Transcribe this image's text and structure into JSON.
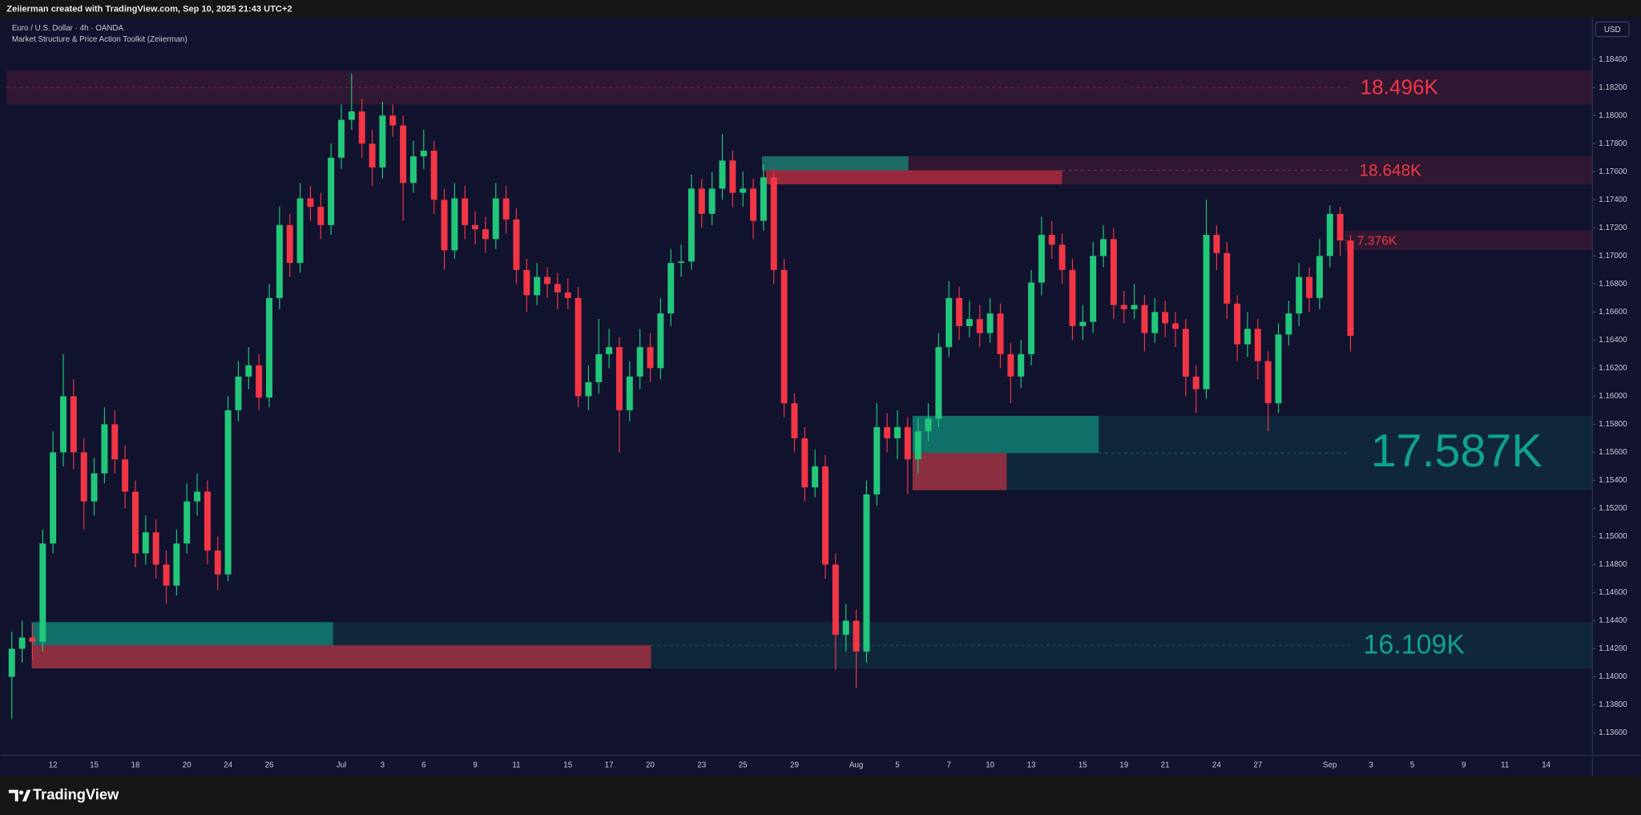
{
  "header": {
    "credit": "Zeiierman created with TradingView.com, Sep 10, 2025 21:43 UTC+2"
  },
  "footer": {
    "brand": "TradingView"
  },
  "chart_data": {
    "type": "candlestick",
    "title": "Euro / U.S. Dollar · 4h · OANDA",
    "subtitle": "Market Structure & Price Action Toolkit (Zeiierman)",
    "currency": "USD",
    "up_color": "#22c77a",
    "down_color": "#f23645",
    "grid": false,
    "categories": [
      null,
      null,
      null,
      null,
      "12",
      null,
      null,
      null,
      "15",
      null,
      null,
      null,
      "18",
      null,
      null,
      null,
      null,
      "20",
      null,
      null,
      null,
      "24",
      null,
      null,
      null,
      "26",
      null,
      null,
      null,
      null,
      null,
      null,
      "Jul",
      null,
      null,
      null,
      "3",
      null,
      null,
      null,
      "6",
      null,
      null,
      null,
      null,
      "9",
      null,
      null,
      null,
      "11",
      null,
      null,
      null,
      null,
      "15",
      null,
      null,
      null,
      "17",
      null,
      null,
      null,
      "20",
      null,
      null,
      null,
      null,
      "23",
      null,
      null,
      null,
      "25",
      null,
      null,
      null,
      null,
      "29",
      null,
      null,
      null,
      null,
      null,
      "Aug",
      null,
      null,
      null,
      "5",
      null,
      null,
      null,
      null,
      "7",
      null,
      null,
      null,
      "10",
      null,
      null,
      null,
      "13",
      null,
      null,
      null,
      null,
      "15",
      null,
      null,
      null,
      "19",
      null,
      null,
      null,
      "21",
      null,
      null,
      null,
      null,
      "24",
      null,
      null,
      null,
      "27",
      null,
      null,
      null,
      null,
      null,
      null,
      "Sep",
      null,
      null,
      null,
      "3",
      null,
      null,
      null,
      "5",
      null,
      null,
      null,
      null,
      "9",
      null,
      null,
      null,
      "11",
      null,
      null,
      null,
      "14",
      null,
      null,
      null,
      null
    ],
    "open": [
      1.14,
      1.142,
      1.1428,
      1.1425,
      1.1495,
      1.156,
      1.16,
      1.156,
      1.1525,
      1.1545,
      1.158,
      1.1555,
      1.1532,
      1.1488,
      1.1503,
      1.148,
      1.1465,
      1.1495,
      1.1525,
      1.1532,
      1.149,
      1.1473,
      1.159,
      1.1614,
      1.1622,
      1.1599,
      1.167,
      1.1722,
      1.1695,
      1.1741,
      1.1735,
      1.1722,
      1.177,
      1.1797,
      1.1803,
      1.178,
      1.1763,
      1.18,
      1.1793,
      1.1752,
      1.1771,
      1.1775,
      1.174,
      1.1704,
      1.1741,
      1.1722,
      1.1719,
      1.1712,
      1.1741,
      1.1726,
      1.169,
      1.1672,
      1.1685,
      1.168,
      1.1674,
      1.167,
      1.16,
      1.161,
      1.163,
      1.1635,
      1.159,
      1.1614,
      1.1635,
      1.162,
      1.1659,
      1.1695,
      1.1696,
      1.1748,
      1.173,
      1.1748,
      1.1768,
      1.1745,
      1.1748,
      1.1725,
      1.1756,
      1.169,
      1.1595,
      1.157,
      1.1535,
      1.155,
      1.148,
      1.143,
      1.144,
      1.1418,
      1.153,
      1.1578,
      1.157,
      1.1578,
      1.1555,
      1.1575,
      1.1584,
      1.1635,
      1.167,
      1.165,
      1.1655,
      1.1645,
      1.1659,
      1.163,
      1.1614,
      1.163,
      1.1681,
      1.1715,
      1.1708,
      1.169,
      1.165,
      1.1653,
      1.17,
      1.1712,
      1.1665,
      1.1662,
      1.1665,
      1.1645,
      1.166,
      1.1652,
      1.1648,
      1.1614,
      1.1605,
      1.1715,
      1.1702,
      1.1666,
      1.1637,
      1.1648,
      1.1625,
      1.1595,
      1.1644,
      1.1659,
      1.1685,
      1.167,
      1.17,
      1.173,
      1.1711,
      null,
      null,
      null,
      null,
      null,
      null,
      null,
      null,
      null,
      null,
      null,
      null,
      null,
      null,
      null,
      null,
      null,
      null,
      null,
      null,
      null,
      null,
      null
    ],
    "high": [
      1.1432,
      1.144,
      1.1438,
      1.1505,
      1.1575,
      1.163,
      1.1612,
      1.157,
      1.1556,
      1.1592,
      1.159,
      1.1565,
      1.154,
      1.1515,
      1.1512,
      1.149,
      1.1505,
      1.1538,
      1.1545,
      1.154,
      1.15,
      1.16,
      1.1625,
      1.1635,
      1.163,
      1.168,
      1.1735,
      1.173,
      1.1752,
      1.175,
      1.1745,
      1.178,
      1.1808,
      1.183,
      1.1812,
      1.179,
      1.181,
      1.1808,
      1.18,
      1.1782,
      1.179,
      1.1782,
      1.1748,
      1.1752,
      1.175,
      1.1732,
      1.1728,
      1.1752,
      1.175,
      1.1734,
      1.1698,
      1.1695,
      1.1692,
      1.1688,
      1.1684,
      1.1678,
      1.1622,
      1.1655,
      1.1648,
      1.1642,
      1.1625,
      1.1648,
      1.1645,
      1.167,
      1.1705,
      1.1708,
      1.1758,
      1.1755,
      1.176,
      1.1787,
      1.1775,
      1.176,
      1.1755,
      1.1765,
      1.1762,
      1.1698,
      1.1602,
      1.1578,
      1.1562,
      1.1558,
      1.1488,
      1.1452,
      1.1448,
      1.154,
      1.1595,
      1.1588,
      1.159,
      1.1585,
      1.1585,
      1.1595,
      1.1645,
      1.1682,
      1.1678,
      1.1668,
      1.1665,
      1.167,
      1.1666,
      1.1638,
      1.164,
      1.169,
      1.1728,
      1.1725,
      1.1716,
      1.1698,
      1.1665,
      1.171,
      1.1722,
      1.172,
      1.1675,
      1.168,
      1.1672,
      1.167,
      1.1668,
      1.166,
      1.1655,
      1.1622,
      1.174,
      1.1722,
      1.171,
      1.1672,
      1.166,
      1.1655,
      1.1632,
      1.1652,
      1.1668,
      1.1695,
      1.1692,
      1.1712,
      1.1736,
      1.1735,
      1.1715,
      null,
      null,
      null,
      null,
      null,
      null,
      null,
      null,
      null,
      null,
      null,
      null,
      null,
      null,
      null,
      null,
      null,
      null,
      null,
      null,
      null,
      null,
      null
    ],
    "low": [
      1.137,
      1.141,
      1.1412,
      1.1418,
      1.1488,
      1.155,
      1.1548,
      1.1505,
      1.1515,
      1.1538,
      1.1545,
      1.152,
      1.1478,
      1.148,
      1.147,
      1.1452,
      1.1458,
      1.1488,
      1.1515,
      1.148,
      1.1462,
      1.1468,
      1.1582,
      1.1605,
      1.159,
      1.1592,
      1.1662,
      1.1685,
      1.1688,
      1.1725,
      1.1712,
      1.1715,
      1.1762,
      1.179,
      1.177,
      1.175,
      1.1755,
      1.1785,
      1.1725,
      1.1745,
      1.1762,
      1.173,
      1.169,
      1.1698,
      1.1712,
      1.1708,
      1.1702,
      1.1705,
      1.1716,
      1.168,
      1.166,
      1.1665,
      1.167,
      1.1662,
      1.1662,
      1.1592,
      1.159,
      1.1602,
      1.162,
      1.156,
      1.1582,
      1.1605,
      1.161,
      1.1612,
      1.165,
      1.1685,
      1.169,
      1.172,
      1.1722,
      1.174,
      1.1735,
      1.1735,
      1.1712,
      1.1718,
      1.168,
      1.1585,
      1.156,
      1.1525,
      1.1528,
      1.147,
      1.1405,
      1.1418,
      1.1392,
      1.141,
      1.1522,
      1.156,
      1.1555,
      1.153,
      1.1545,
      1.1568,
      1.1578,
      1.1628,
      1.164,
      1.1642,
      1.1635,
      1.1638,
      1.162,
      1.1595,
      1.1606,
      1.1622,
      1.1672,
      1.1698,
      1.168,
      1.164,
      1.164,
      1.1645,
      1.1692,
      1.1655,
      1.1652,
      1.1655,
      1.1632,
      1.1638,
      1.1642,
      1.1635,
      1.16,
      1.1588,
      1.1598,
      1.169,
      1.1655,
      1.1625,
      1.1628,
      1.1612,
      1.1575,
      1.1588,
      1.1636,
      1.165,
      1.166,
      1.1662,
      1.1692,
      1.17,
      1.1632,
      null,
      null,
      null,
      null,
      null,
      null,
      null,
      null,
      null,
      null,
      null,
      null,
      null,
      null,
      null,
      null,
      null,
      null,
      null,
      null,
      null,
      null,
      null
    ],
    "close": [
      1.142,
      1.1428,
      1.1425,
      1.1495,
      1.156,
      1.16,
      1.156,
      1.1525,
      1.1545,
      1.158,
      1.1555,
      1.1532,
      1.1488,
      1.1503,
      1.148,
      1.1465,
      1.1495,
      1.1525,
      1.1532,
      1.149,
      1.1473,
      1.159,
      1.1614,
      1.1622,
      1.1599,
      1.167,
      1.1722,
      1.1695,
      1.1741,
      1.1735,
      1.1722,
      1.177,
      1.1797,
      1.1803,
      1.178,
      1.1763,
      1.18,
      1.1793,
      1.1752,
      1.1771,
      1.1775,
      1.174,
      1.1704,
      1.1741,
      1.1722,
      1.1719,
      1.1712,
      1.1741,
      1.1726,
      1.169,
      1.1672,
      1.1685,
      1.168,
      1.1674,
      1.167,
      1.16,
      1.161,
      1.163,
      1.1635,
      1.159,
      1.1614,
      1.1635,
      1.162,
      1.1659,
      1.1695,
      1.1696,
      1.1748,
      1.173,
      1.1748,
      1.1768,
      1.1745,
      1.1748,
      1.1725,
      1.1756,
      1.169,
      1.1595,
      1.157,
      1.1535,
      1.155,
      1.148,
      1.143,
      1.144,
      1.1418,
      1.153,
      1.1578,
      1.157,
      1.1578,
      1.1555,
      1.1575,
      1.1584,
      1.1635,
      1.167,
      1.165,
      1.1655,
      1.1645,
      1.1659,
      1.163,
      1.1614,
      1.163,
      1.1681,
      1.1715,
      1.1708,
      1.169,
      1.165,
      1.1653,
      1.17,
      1.1712,
      1.1665,
      1.1662,
      1.1665,
      1.1645,
      1.166,
      1.1652,
      1.1648,
      1.1614,
      1.1605,
      1.1715,
      1.1702,
      1.1666,
      1.1637,
      1.1648,
      1.1625,
      1.1595,
      1.1644,
      1.1659,
      1.1685,
      1.167,
      1.17,
      1.173,
      1.1711,
      1.1643,
      null,
      null,
      null,
      null,
      null,
      null,
      null,
      null,
      null,
      null,
      null,
      null,
      null,
      null,
      null,
      null,
      null,
      null,
      null,
      null,
      null,
      null,
      null
    ],
    "ylim": [
      1.1344,
      1.1869
    ],
    "yticks": [
      {
        "value": 1.136,
        "label": "1.13600"
      },
      {
        "value": 1.138,
        "label": "1.13800"
      },
      {
        "value": 1.14,
        "label": "1.14000"
      },
      {
        "value": 1.142,
        "label": "1.14200"
      },
      {
        "value": 1.144,
        "label": "1.14400"
      },
      {
        "value": 1.146,
        "label": "1.14600"
      },
      {
        "value": 1.148,
        "label": "1.14800"
      },
      {
        "value": 1.15,
        "label": "1.15000"
      },
      {
        "value": 1.152,
        "label": "1.15200"
      },
      {
        "value": 1.154,
        "label": "1.15400"
      },
      {
        "value": 1.156,
        "label": "1.15600"
      },
      {
        "value": 1.158,
        "label": "1.15800"
      },
      {
        "value": 1.16,
        "label": "1.16000"
      },
      {
        "value": 1.162,
        "label": "1.16200"
      },
      {
        "value": 1.164,
        "label": "1.16400"
      },
      {
        "value": 1.166,
        "label": "1.16600"
      },
      {
        "value": 1.168,
        "label": "1.16800"
      },
      {
        "value": 1.17,
        "label": "1.17000"
      },
      {
        "value": 1.172,
        "label": "1.17200"
      },
      {
        "value": 1.174,
        "label": "1.17400"
      },
      {
        "value": 1.176,
        "label": "1.17600"
      },
      {
        "value": 1.178,
        "label": "1.17800"
      },
      {
        "value": 1.18,
        "label": "1.18000"
      },
      {
        "value": 1.182,
        "label": "1.18200"
      },
      {
        "value": 1.184,
        "label": "1.18400"
      }
    ],
    "zones": [
      {
        "value": 18496,
        "label": "18.496K",
        "top": 1.1832,
        "bottom": 1.1808,
        "color": "#f23645"
      },
      {
        "value": 18648,
        "label": "18.648K",
        "top": 1.1771,
        "bottom": 1.1751,
        "color": "#f23645"
      },
      {
        "value": 7376,
        "label": "7.376K",
        "top": 1.1718,
        "bottom": 1.1704,
        "color": "#f23645"
      },
      {
        "value": 17587,
        "label": "17.587K",
        "top": 1.1586,
        "bottom": 1.1533,
        "color": "#0fa38a"
      },
      {
        "value": 16109,
        "label": "16.109K",
        "top": 1.1439,
        "bottom": 1.1406,
        "color": "#0fa38a"
      }
    ]
  }
}
